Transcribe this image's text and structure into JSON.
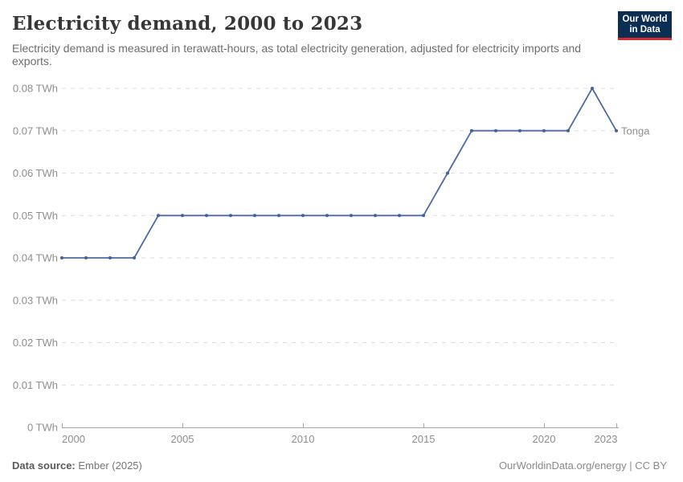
{
  "header": {
    "title": "Electricity demand, 2000 to 2023",
    "subtitle": "Electricity demand is measured in terawatt-hours, as total electricity generation, adjusted for electricity imports and exports."
  },
  "logo": {
    "line1": "Our World",
    "line2": "in Data"
  },
  "chart_data": {
    "type": "line",
    "title": "Electricity demand, 2000 to 2023",
    "unit": "TWh",
    "xlim": [
      2000,
      2023
    ],
    "ylim": [
      0,
      0.08
    ],
    "grid": "horizontal-dashed",
    "legend_position": "end-of-line",
    "x": [
      2000,
      2001,
      2002,
      2003,
      2004,
      2005,
      2006,
      2007,
      2008,
      2009,
      2010,
      2011,
      2012,
      2013,
      2014,
      2015,
      2016,
      2017,
      2018,
      2019,
      2020,
      2021,
      2022,
      2023
    ],
    "series": [
      {
        "name": "Tonga",
        "values": [
          0.04,
          0.04,
          0.04,
          0.04,
          0.05,
          0.05,
          0.05,
          0.05,
          0.05,
          0.05,
          0.05,
          0.05,
          0.05,
          0.05,
          0.05,
          0.05,
          0.06,
          0.07,
          0.07,
          0.07,
          0.07,
          0.07,
          0.08,
          0.07
        ]
      }
    ],
    "y_ticks": [
      {
        "value": 0,
        "label": "0 TWh"
      },
      {
        "value": 0.01,
        "label": "0.01 TWh"
      },
      {
        "value": 0.02,
        "label": "0.02 TWh"
      },
      {
        "value": 0.03,
        "label": "0.03 TWh"
      },
      {
        "value": 0.04,
        "label": "0.04 TWh"
      },
      {
        "value": 0.05,
        "label": "0.05 TWh"
      },
      {
        "value": 0.06,
        "label": "0.06 TWh"
      },
      {
        "value": 0.07,
        "label": "0.07 TWh"
      },
      {
        "value": 0.08,
        "label": "0.08 TWh"
      }
    ],
    "x_ticks": [
      {
        "value": 2000,
        "label": "2000"
      },
      {
        "value": 2005,
        "label": "2005"
      },
      {
        "value": 2010,
        "label": "2010"
      },
      {
        "value": 2015,
        "label": "2015"
      },
      {
        "value": 2020,
        "label": "2020"
      },
      {
        "value": 2023,
        "label": "2023"
      }
    ]
  },
  "colors": {
    "line": "#4c6ba3",
    "point": "#3f62a0",
    "series_label": "#4c6ba3",
    "grid": "#dcdcdc",
    "axis": "#a8a8a8",
    "tick_label": "#8f8f8f",
    "logo_bg": "#0c2d54",
    "logo_bar": "#d92b2b"
  },
  "footer": {
    "source_label": "Data source:",
    "source_value": "Ember (2025)",
    "license_text": "OurWorldinData.org/energy | CC BY"
  }
}
